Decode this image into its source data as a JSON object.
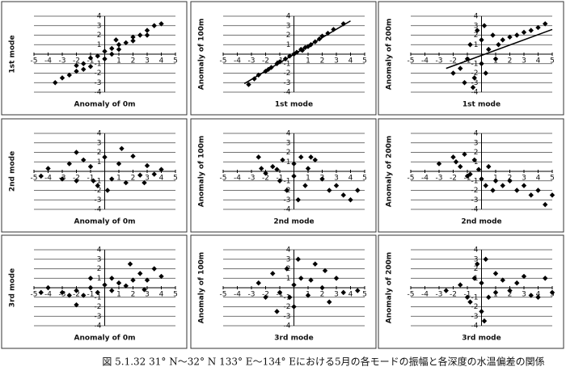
{
  "chart_data": [
    {
      "type": "scatter",
      "ylabel": "1st mode",
      "xlabel": "Anomaly of 0m",
      "xlim": [
        -5,
        5
      ],
      "ylim": [
        -4,
        4
      ],
      "xticks": [
        -5,
        -4,
        -3,
        -2,
        -1,
        1,
        2,
        3,
        4,
        5
      ],
      "yticks": [
        4,
        3,
        2,
        1,
        -1,
        -2,
        -3,
        -4
      ],
      "grid": true,
      "color": "#000000",
      "x": [
        -3.5,
        -3,
        -2.5,
        -2,
        -2,
        -1.5,
        -1,
        -1,
        -0.5,
        0,
        0,
        0.5,
        0.5,
        1,
        1,
        1.5,
        2,
        2,
        2.5,
        3,
        3,
        3.5,
        4,
        -1.5,
        0.8
      ],
      "y": [
        -3,
        -2.5,
        -2.2,
        -1.8,
        -1.2,
        -1,
        -1.3,
        -0.4,
        -0.2,
        0.3,
        -0.5,
        0.6,
        0,
        1,
        0.5,
        1.2,
        1.8,
        1.4,
        2,
        2.5,
        2,
        3,
        3.2,
        -1.6,
        1.5
      ]
    },
    {
      "type": "scatter",
      "ylabel": "Anomaly of 100m",
      "xlabel": "1st mode",
      "xlim": [
        -5,
        5
      ],
      "ylim": [
        -4,
        4
      ],
      "xticks": [
        -5,
        -4,
        -3,
        -2,
        -1,
        1,
        2,
        3,
        4,
        5
      ],
      "yticks": [
        4,
        3,
        2,
        1,
        -1,
        -2,
        -3,
        -4
      ],
      "grid": true,
      "color": "#000000",
      "x": [
        -3.2,
        -2.8,
        -2.5,
        -2,
        -1.6,
        -1.2,
        -1,
        -0.6,
        -0.3,
        0,
        0.2,
        0.5,
        0.8,
        1,
        1.2,
        1.5,
        1.8,
        2,
        2.4,
        2.8,
        3.5,
        -1.8,
        0.6
      ],
      "y": [
        -3.2,
        -2.6,
        -2.2,
        -1.8,
        -1.4,
        -1,
        -0.8,
        -0.5,
        -0.2,
        0,
        0.2,
        0.5,
        0.7,
        0.8,
        1,
        1.3,
        1.6,
        1.9,
        2.2,
        2.6,
        3.2,
        -1.6,
        0.4
      ],
      "fit": {
        "x": [
          -3.5,
          4
        ],
        "y": [
          -3.1,
          3.5
        ]
      }
    },
    {
      "type": "scatter",
      "ylabel": "Anomaly of 200m",
      "xlabel": "1st mode",
      "xlim": [
        -5,
        5
      ],
      "ylim": [
        -4,
        4
      ],
      "xticks": [
        -5,
        -4,
        -3,
        -2,
        -1,
        1,
        2,
        3,
        4,
        5
      ],
      "yticks": [
        4,
        3,
        2,
        1,
        -1,
        -2,
        -3,
        -4
      ],
      "grid": true,
      "color": "#000000",
      "x": [
        -2,
        -1.5,
        -1.2,
        -1,
        -0.8,
        -0.5,
        -0.3,
        0,
        0,
        0.2,
        0.5,
        0.8,
        1,
        1.2,
        1.5,
        2,
        2.5,
        3,
        3.5,
        4,
        4.5,
        -0.6,
        0.3
      ],
      "y": [
        -2,
        -1.5,
        -3,
        -0.5,
        1,
        -2.5,
        2.5,
        -1,
        1.5,
        3,
        0.5,
        2,
        -0.5,
        1,
        1.5,
        1.8,
        2,
        2.3,
        2.5,
        2.8,
        3.2,
        -3.5,
        -2
      ],
      "fit": {
        "x": [
          -2.5,
          5
        ],
        "y": [
          -1.5,
          2.6
        ]
      }
    },
    {
      "type": "scatter",
      "ylabel": "2nd mode",
      "xlabel": "Anomaly of 0m",
      "xlim": [
        -5,
        5
      ],
      "ylim": [
        -4,
        4
      ],
      "xticks": [
        -5,
        -4,
        -3,
        -2,
        -1,
        1,
        2,
        3,
        4,
        5
      ],
      "yticks": [
        4,
        3,
        2,
        1,
        -1,
        -2,
        -3,
        -4
      ],
      "grid": true,
      "color": "#000000",
      "x": [
        -4.5,
        -4,
        -3,
        -2.5,
        -2,
        -1.5,
        -1,
        -0.5,
        0,
        0.5,
        1,
        1.5,
        2,
        2.5,
        3,
        3.5,
        4,
        -2,
        0.2,
        1.2,
        -0.8,
        2.8
      ],
      "y": [
        -0.5,
        0.3,
        -0.8,
        0.8,
        -1,
        1.2,
        0.5,
        -1.5,
        1.5,
        -0.8,
        0.8,
        -1.2,
        1.6,
        -0.4,
        0.6,
        -0.3,
        0.2,
        2,
        -2,
        2.4,
        -1,
        -1.2
      ]
    },
    {
      "type": "scatter",
      "ylabel": "Anomaly of 100m",
      "xlabel": "2nd mode",
      "xlim": [
        -5,
        5
      ],
      "ylim": [
        -4,
        4
      ],
      "xticks": [
        -5,
        -4,
        -3,
        -2,
        -1,
        1,
        2,
        3,
        4,
        5
      ],
      "yticks": [
        4,
        3,
        2,
        1,
        -1,
        -2,
        -3,
        -4
      ],
      "grid": true,
      "color": "#000000",
      "x": [
        -2.5,
        -2,
        -1.5,
        -1,
        -0.8,
        -0.5,
        0,
        0,
        0.5,
        0.8,
        1,
        1.5,
        2,
        2.5,
        3,
        3.5,
        4,
        -2.3,
        0.3,
        1.2,
        -1.2,
        4.5
      ],
      "y": [
        1.5,
        -0.2,
        0.5,
        -1,
        1.2,
        -2,
        0.8,
        -0.5,
        1.5,
        -1.5,
        0.3,
        1.2,
        -0.8,
        -2,
        -1.5,
        -2.5,
        -3,
        0.3,
        -3,
        1.5,
        0.2,
        -2
      ]
    },
    {
      "type": "scatter",
      "ylabel": "Anomaly of 200m",
      "xlabel": "2nd mode",
      "xlim": [
        -5,
        5
      ],
      "ylim": [
        -4,
        4
      ],
      "xticks": [
        -5,
        -4,
        -3,
        -2,
        -1,
        1,
        2,
        3,
        4,
        5
      ],
      "yticks": [
        4,
        3,
        2,
        1,
        -1,
        -2,
        -3,
        -4
      ],
      "grid": true,
      "color": "#000000",
      "x": [
        -3,
        -2,
        -1.5,
        -1.2,
        -1,
        -0.5,
        -0.2,
        0,
        0.3,
        0.5,
        1,
        1.5,
        2,
        2.5,
        3,
        3.5,
        4,
        4.5,
        5,
        -1.8,
        0.8,
        -0.8
      ],
      "y": [
        0.8,
        1.5,
        0.5,
        1.8,
        -0.5,
        1.2,
        0.2,
        -0.8,
        -1.5,
        0.5,
        -1,
        -1.5,
        -1,
        -2,
        -1.5,
        -2.5,
        -2,
        -3.5,
        -2.5,
        1,
        -2,
        -0.3
      ]
    },
    {
      "type": "scatter",
      "ylabel": "3rd mode",
      "xlabel": "Anomaly of 0m",
      "xlim": [
        -5,
        5
      ],
      "ylim": [
        -4,
        4
      ],
      "xticks": [
        -5,
        -4,
        -3,
        -2,
        -1,
        1,
        2,
        3,
        4,
        5
      ],
      "yticks": [
        4,
        3,
        2,
        1,
        -1,
        -2,
        -3,
        -4
      ],
      "grid": true,
      "color": "#000000",
      "x": [
        -4.5,
        -4,
        -3,
        -2.5,
        -2,
        -1.5,
        -1,
        -0.5,
        0,
        0.5,
        1,
        1.5,
        2,
        2.5,
        3,
        3.5,
        4,
        -2,
        0.5,
        1.8,
        2.8,
        -1
      ],
      "y": [
        -0.5,
        0,
        -0.5,
        -0.8,
        -0.3,
        -0.8,
        0,
        -0.5,
        0.3,
        -0.3,
        0.5,
        0.2,
        0.8,
        1.5,
        0.8,
        2,
        1.2,
        -1.8,
        1,
        2.5,
        -0.2,
        1
      ]
    },
    {
      "type": "scatter",
      "ylabel": "Anomaly of 100m",
      "xlabel": "3rd mode",
      "xlim": [
        -5,
        5
      ],
      "ylim": [
        -4,
        4
      ],
      "xticks": [
        -5,
        -4,
        -3,
        -2,
        -1,
        1,
        2,
        3,
        4,
        5
      ],
      "yticks": [
        4,
        3,
        2,
        1,
        -1,
        -2,
        -3,
        -4
      ],
      "grid": true,
      "color": "#000000",
      "x": [
        -2.5,
        -2,
        -1.5,
        -1,
        -0.5,
        0,
        0,
        0.5,
        1,
        1.5,
        2,
        2.5,
        3,
        3.5,
        4.5,
        -1.2,
        0.3,
        1.2,
        -0.3,
        2.2
      ],
      "y": [
        0.5,
        -1,
        1.5,
        -0.5,
        2,
        0.3,
        -2,
        1,
        -0.8,
        2.5,
        0,
        -1.5,
        1,
        -0.5,
        -0.3,
        -2.5,
        3,
        0.8,
        -1,
        1.8
      ]
    },
    {
      "type": "scatter",
      "ylabel": "Anomaly of 200m",
      "xlabel": "3rd mode",
      "xlim": [
        -5,
        5
      ],
      "ylim": [
        -4,
        4
      ],
      "xticks": [
        -5,
        -4,
        -3,
        -2,
        -1,
        1,
        2,
        3,
        4,
        5
      ],
      "yticks": [
        4,
        3,
        2,
        1,
        -1,
        -2,
        -3,
        -4
      ],
      "grid": true,
      "color": "#000000",
      "x": [
        -2.5,
        -1.5,
        -1,
        -0.5,
        -0.3,
        0,
        0,
        0.3,
        0.5,
        1,
        1,
        1.5,
        2,
        2.5,
        3,
        3.5,
        4,
        4.5,
        5,
        -0.8,
        0.2
      ],
      "y": [
        -0.3,
        0.3,
        -1,
        1,
        2.5,
        -2.5,
        0.5,
        3,
        -1,
        1.5,
        -0.5,
        0.8,
        -0.3,
        0.5,
        1.2,
        -0.8,
        -1,
        1,
        -0.5,
        -1.5,
        -3.5
      ]
    }
  ],
  "caption": "図 5.1.32 31° N～32° N 133° E～134° Eにおける5月の各モードの振幅と各深度の水温偏差の関係"
}
